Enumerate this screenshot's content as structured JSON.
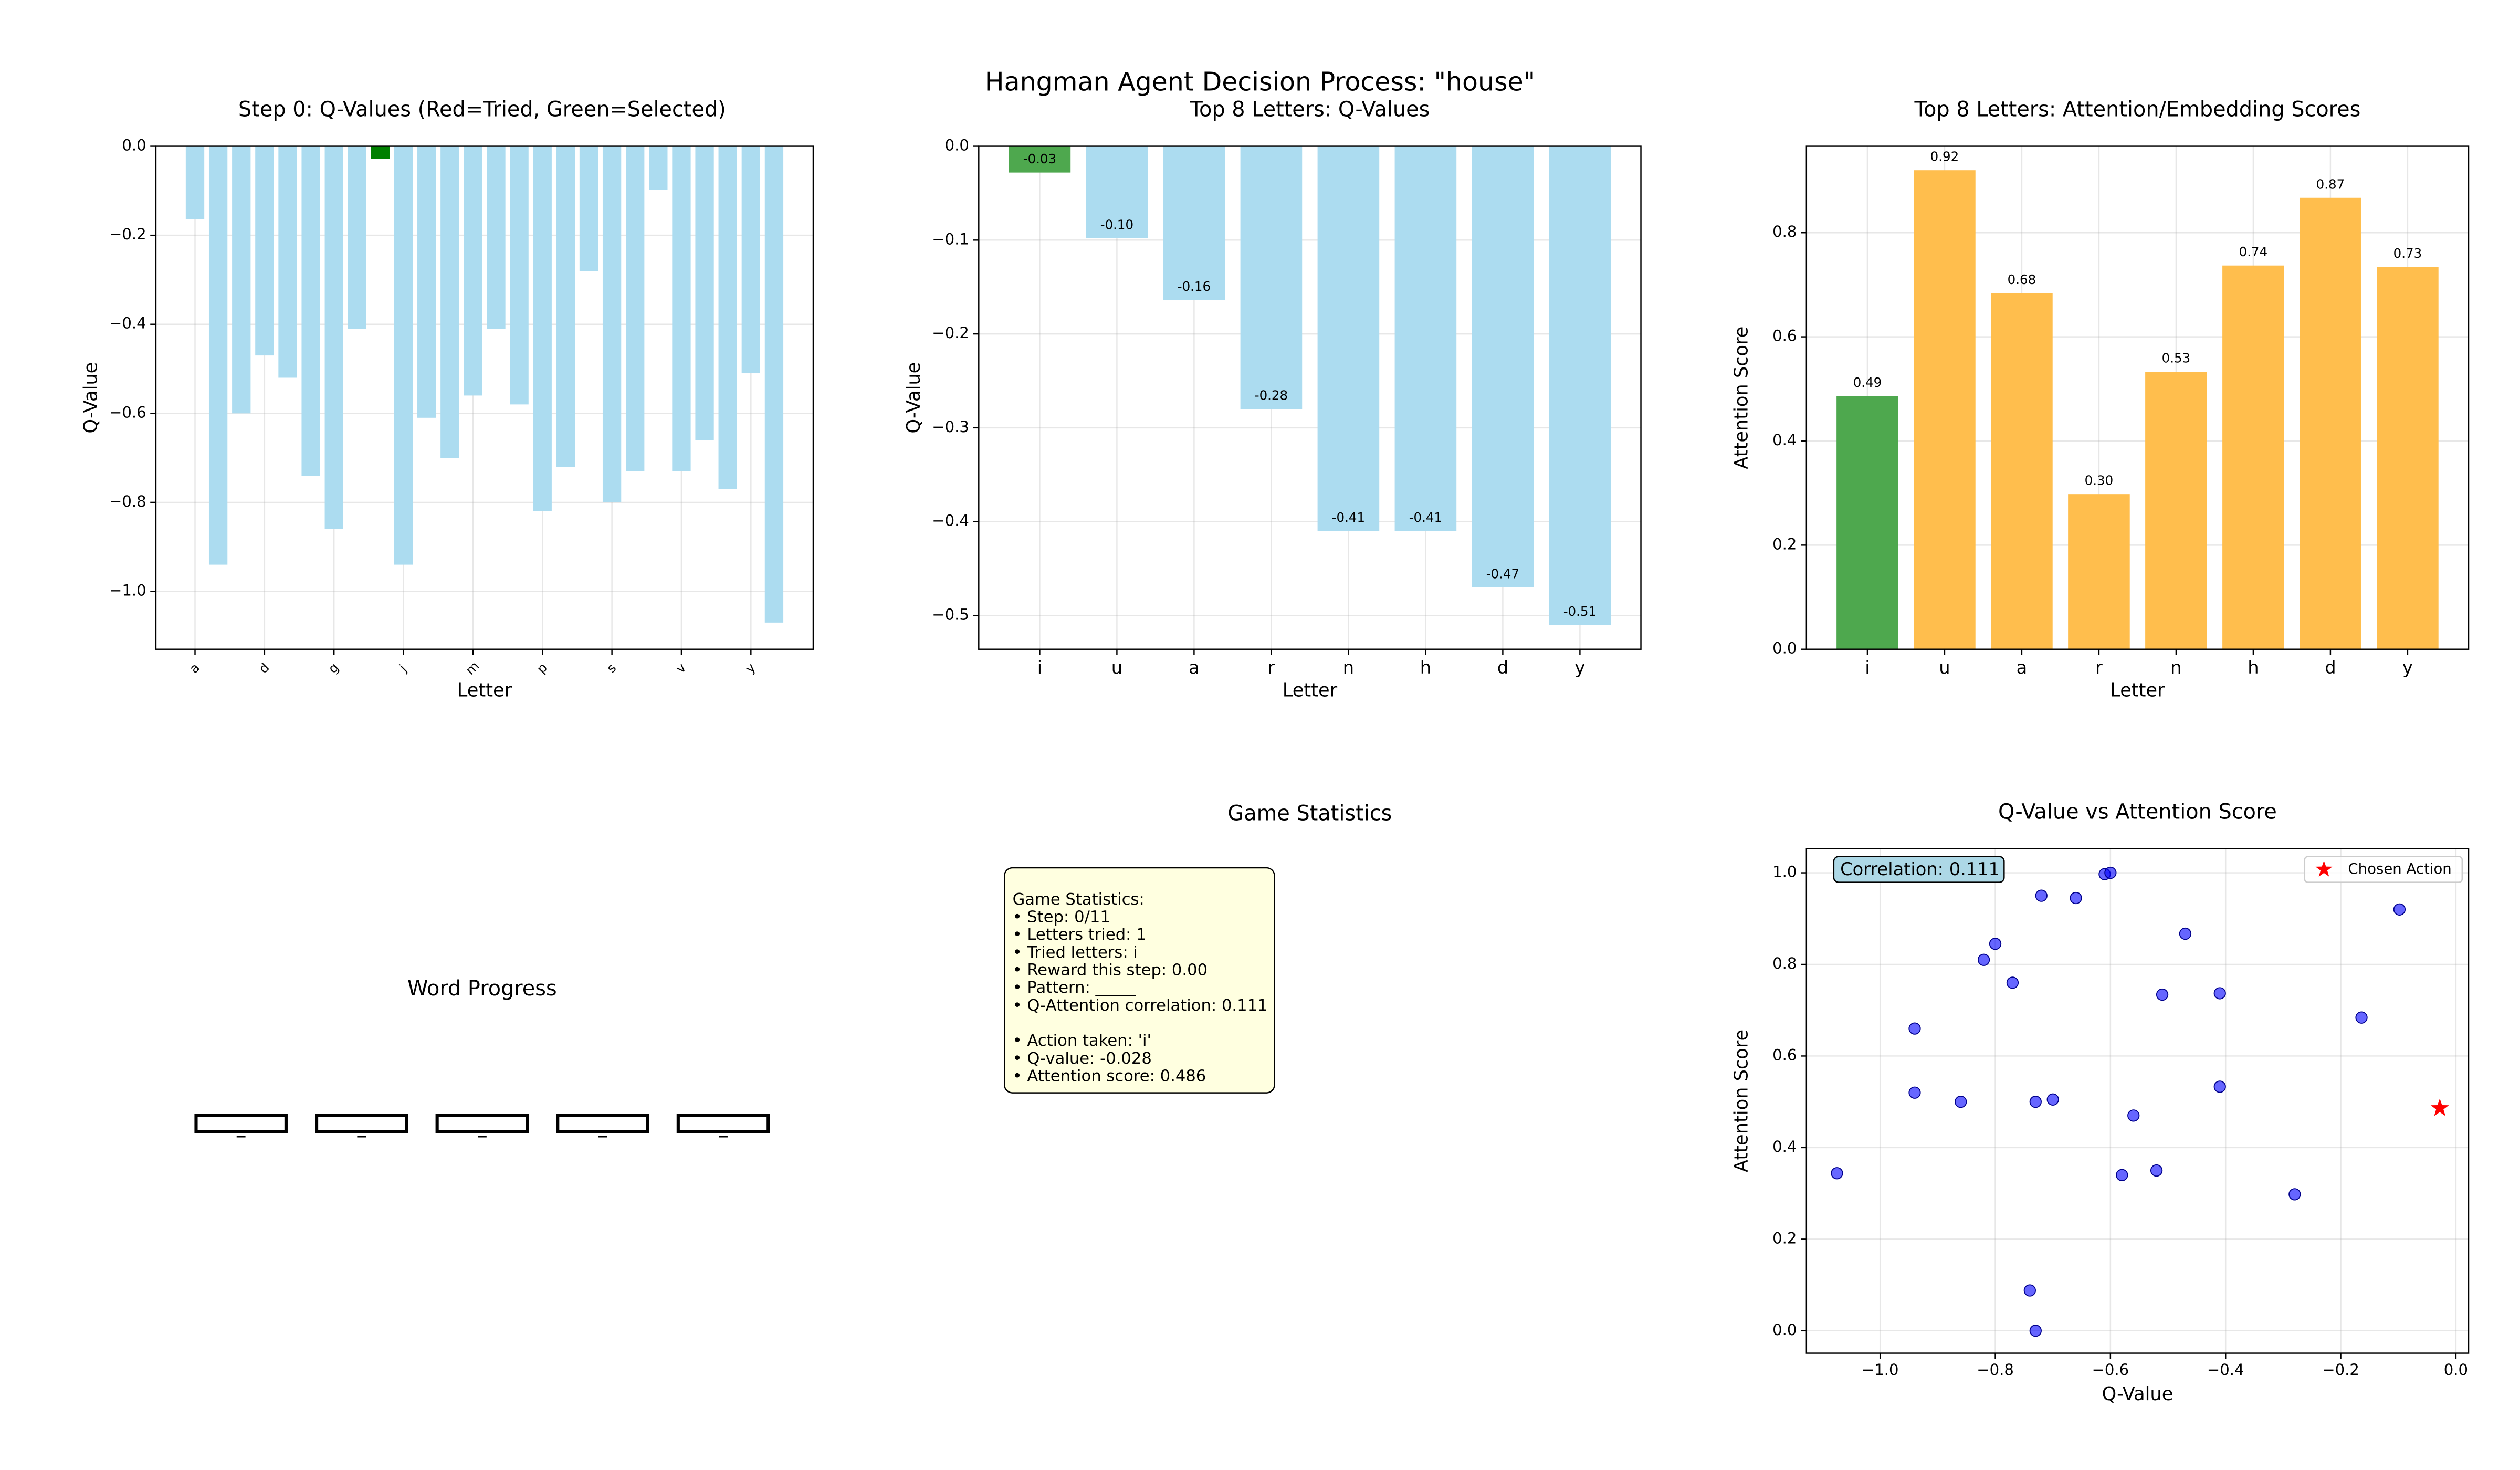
{
  "title": "Hangman Agent Decision Process: \"house\"",
  "chart_data": [
    {
      "type": "bar",
      "title": "Step 0: Q-Values (Red=Tried, Green=Selected)",
      "xlabel": "Letter",
      "ylabel": "Q-Value",
      "categories": [
        "a",
        null,
        null,
        "d",
        null,
        null,
        "g",
        null,
        null,
        "j",
        null,
        null,
        "m",
        null,
        null,
        "p",
        null,
        null,
        "s",
        null,
        null,
        "v",
        null,
        null,
        "y",
        null
      ],
      "values": [
        -0.164,
        -0.94,
        -0.6,
        -0.47,
        -0.52,
        -0.74,
        -0.86,
        -0.41,
        -0.028,
        -0.94,
        -0.61,
        -0.7,
        -0.56,
        -0.41,
        -0.58,
        -0.82,
        -0.72,
        -0.28,
        -0.8,
        -0.73,
        -0.098,
        -0.73,
        -0.66,
        -0.77,
        -0.51,
        -1.07
      ],
      "colors": [
        "#acdcf0",
        "#acdcf0",
        "#acdcf0",
        "#acdcf0",
        "#acdcf0",
        "#acdcf0",
        "#acdcf0",
        "#acdcf0",
        "#008000",
        "#acdcf0",
        "#acdcf0",
        "#acdcf0",
        "#acdcf0",
        "#acdcf0",
        "#acdcf0",
        "#acdcf0",
        "#acdcf0",
        "#acdcf0",
        "#acdcf0",
        "#acdcf0",
        "#acdcf0",
        "#acdcf0",
        "#acdcf0",
        "#acdcf0",
        "#acdcf0",
        "#acdcf0"
      ],
      "rotate_xticks": true,
      "ylim": [
        -1.13,
        0
      ],
      "yticks": [
        {
          "value": 0,
          "label": "0.0"
        },
        {
          "value": -0.2,
          "label": "−0.2"
        },
        {
          "value": -0.4,
          "label": "−0.4"
        },
        {
          "value": -0.6,
          "label": "−0.6"
        },
        {
          "value": -0.8,
          "label": "−0.8"
        },
        {
          "value": -1.0,
          "label": "−1.0"
        }
      ],
      "grid": true
    },
    {
      "type": "bar",
      "title": "Top 8 Letters: Q-Values",
      "xlabel": "Letter",
      "ylabel": "Q-Value",
      "categories": [
        "i",
        "u",
        "a",
        "r",
        "n",
        "h",
        "d",
        "y"
      ],
      "values": [
        -0.028,
        -0.098,
        -0.164,
        -0.28,
        -0.41,
        -0.41,
        -0.47,
        -0.51
      ],
      "value_labels": [
        "-0.03",
        "-0.10",
        "-0.16",
        "-0.28",
        "-0.41",
        "-0.41",
        "-0.47",
        "-0.51"
      ],
      "colors": [
        "#4ea84e",
        "#acdcf0",
        "#acdcf0",
        "#acdcf0",
        "#acdcf0",
        "#acdcf0",
        "#acdcf0",
        "#acdcf0"
      ],
      "label_color": "#0000cc",
      "ylim": [
        -0.536,
        0
      ],
      "yticks": [
        {
          "value": 0,
          "label": "0.0"
        },
        {
          "value": -0.1,
          "label": "−0.1"
        },
        {
          "value": -0.2,
          "label": "−0.2"
        },
        {
          "value": -0.3,
          "label": "−0.3"
        },
        {
          "value": -0.4,
          "label": "−0.4"
        },
        {
          "value": -0.5,
          "label": "−0.5"
        }
      ],
      "grid": true
    },
    {
      "type": "bar",
      "title": "Top 8 Letters: Attention/Embedding Scores",
      "xlabel": "Letter",
      "ylabel": "Attention Score",
      "categories": [
        "i",
        "u",
        "a",
        "r",
        "n",
        "h",
        "d",
        "y"
      ],
      "values": [
        0.486,
        0.92,
        0.684,
        0.298,
        0.533,
        0.737,
        0.867,
        0.734
      ],
      "value_labels": [
        "0.49",
        "0.92",
        "0.68",
        "0.30",
        "0.53",
        "0.74",
        "0.87",
        "0.73"
      ],
      "colors": [
        "#4ea84e",
        "#ffbe4d",
        "#ffbe4d",
        "#ffbe4d",
        "#ffbe4d",
        "#ffbe4d",
        "#ffbe4d",
        "#ffbe4d"
      ],
      "label_color": "#f5a623",
      "ylim": [
        0,
        0.966
      ],
      "yticks": [
        {
          "value": 0,
          "label": "0.0"
        },
        {
          "value": 0.2,
          "label": "0.2"
        },
        {
          "value": 0.4,
          "label": "0.4"
        },
        {
          "value": 0.6,
          "label": "0.6"
        },
        {
          "value": 0.8,
          "label": "0.8"
        }
      ],
      "grid": true
    },
    {
      "type": "word_progress",
      "title": "Word Progress",
      "slots": [
        "_",
        "_",
        "_",
        "_",
        "_"
      ]
    },
    {
      "type": "text",
      "title": "Game Statistics",
      "blocks": [
        [
          "Game Statistics:",
          "• Step: 0/11",
          "• Letters tried: 1",
          "• Tried letters: i",
          "• Reward this step: 0.00",
          "• Pattern: _____",
          "• Q-Attention correlation: 0.111"
        ],
        [
          "• Action taken: 'i'",
          "• Q-value: -0.028",
          "• Attention score: 0.486"
        ]
      ]
    },
    {
      "type": "scatter",
      "title": "Q-Value vs Attention Score",
      "xlabel": "Q-Value",
      "ylabel": "Attention Score",
      "annotation": "Correlation: 0.111",
      "legend": "upper right",
      "series": [
        {
          "color": "#0000ff",
          "marker": "circle",
          "x": [
            -1.075,
            -0.94,
            -0.94,
            -0.86,
            -0.82,
            -0.8,
            -0.77,
            -0.74,
            -0.73,
            -0.73,
            -0.72,
            -0.7,
            -0.66,
            -0.61,
            -0.6,
            -0.58,
            -0.56,
            -0.52,
            -0.51,
            -0.47,
            -0.41,
            -0.41,
            -0.28,
            -0.164,
            -0.098
          ],
          "values": [
            0.344,
            0.66,
            0.52,
            0.5,
            0.81,
            0.845,
            0.76,
            0.088,
            0.0,
            0.5,
            0.95,
            0.505,
            0.945,
            0.997,
            1.0,
            0.34,
            0.47,
            0.35,
            0.734,
            0.867,
            0.737,
            0.533,
            0.298,
            0.684,
            0.92
          ]
        },
        {
          "name": "Chosen Action",
          "color": "#ff0000",
          "marker": "star",
          "x": [
            -0.028
          ],
          "values": [
            0.486
          ]
        }
      ],
      "xlim": [
        -1.128,
        0.022
      ],
      "ylim": [
        -0.049,
        1.053
      ],
      "xticks": [
        {
          "value": -1.0,
          "label": "−1.0"
        },
        {
          "value": -0.8,
          "label": "−0.8"
        },
        {
          "value": -0.6,
          "label": "−0.6"
        },
        {
          "value": -0.4,
          "label": "−0.4"
        },
        {
          "value": -0.2,
          "label": "−0.2"
        },
        {
          "value": 0,
          "label": "0.0"
        }
      ],
      "yticks": [
        {
          "value": 0,
          "label": "0.0"
        },
        {
          "value": 0.2,
          "label": "0.2"
        },
        {
          "value": 0.4,
          "label": "0.4"
        },
        {
          "value": 0.6,
          "label": "0.6"
        },
        {
          "value": 0.8,
          "label": "0.8"
        },
        {
          "value": 1.0,
          "label": "1.0"
        }
      ],
      "grid": true
    }
  ]
}
